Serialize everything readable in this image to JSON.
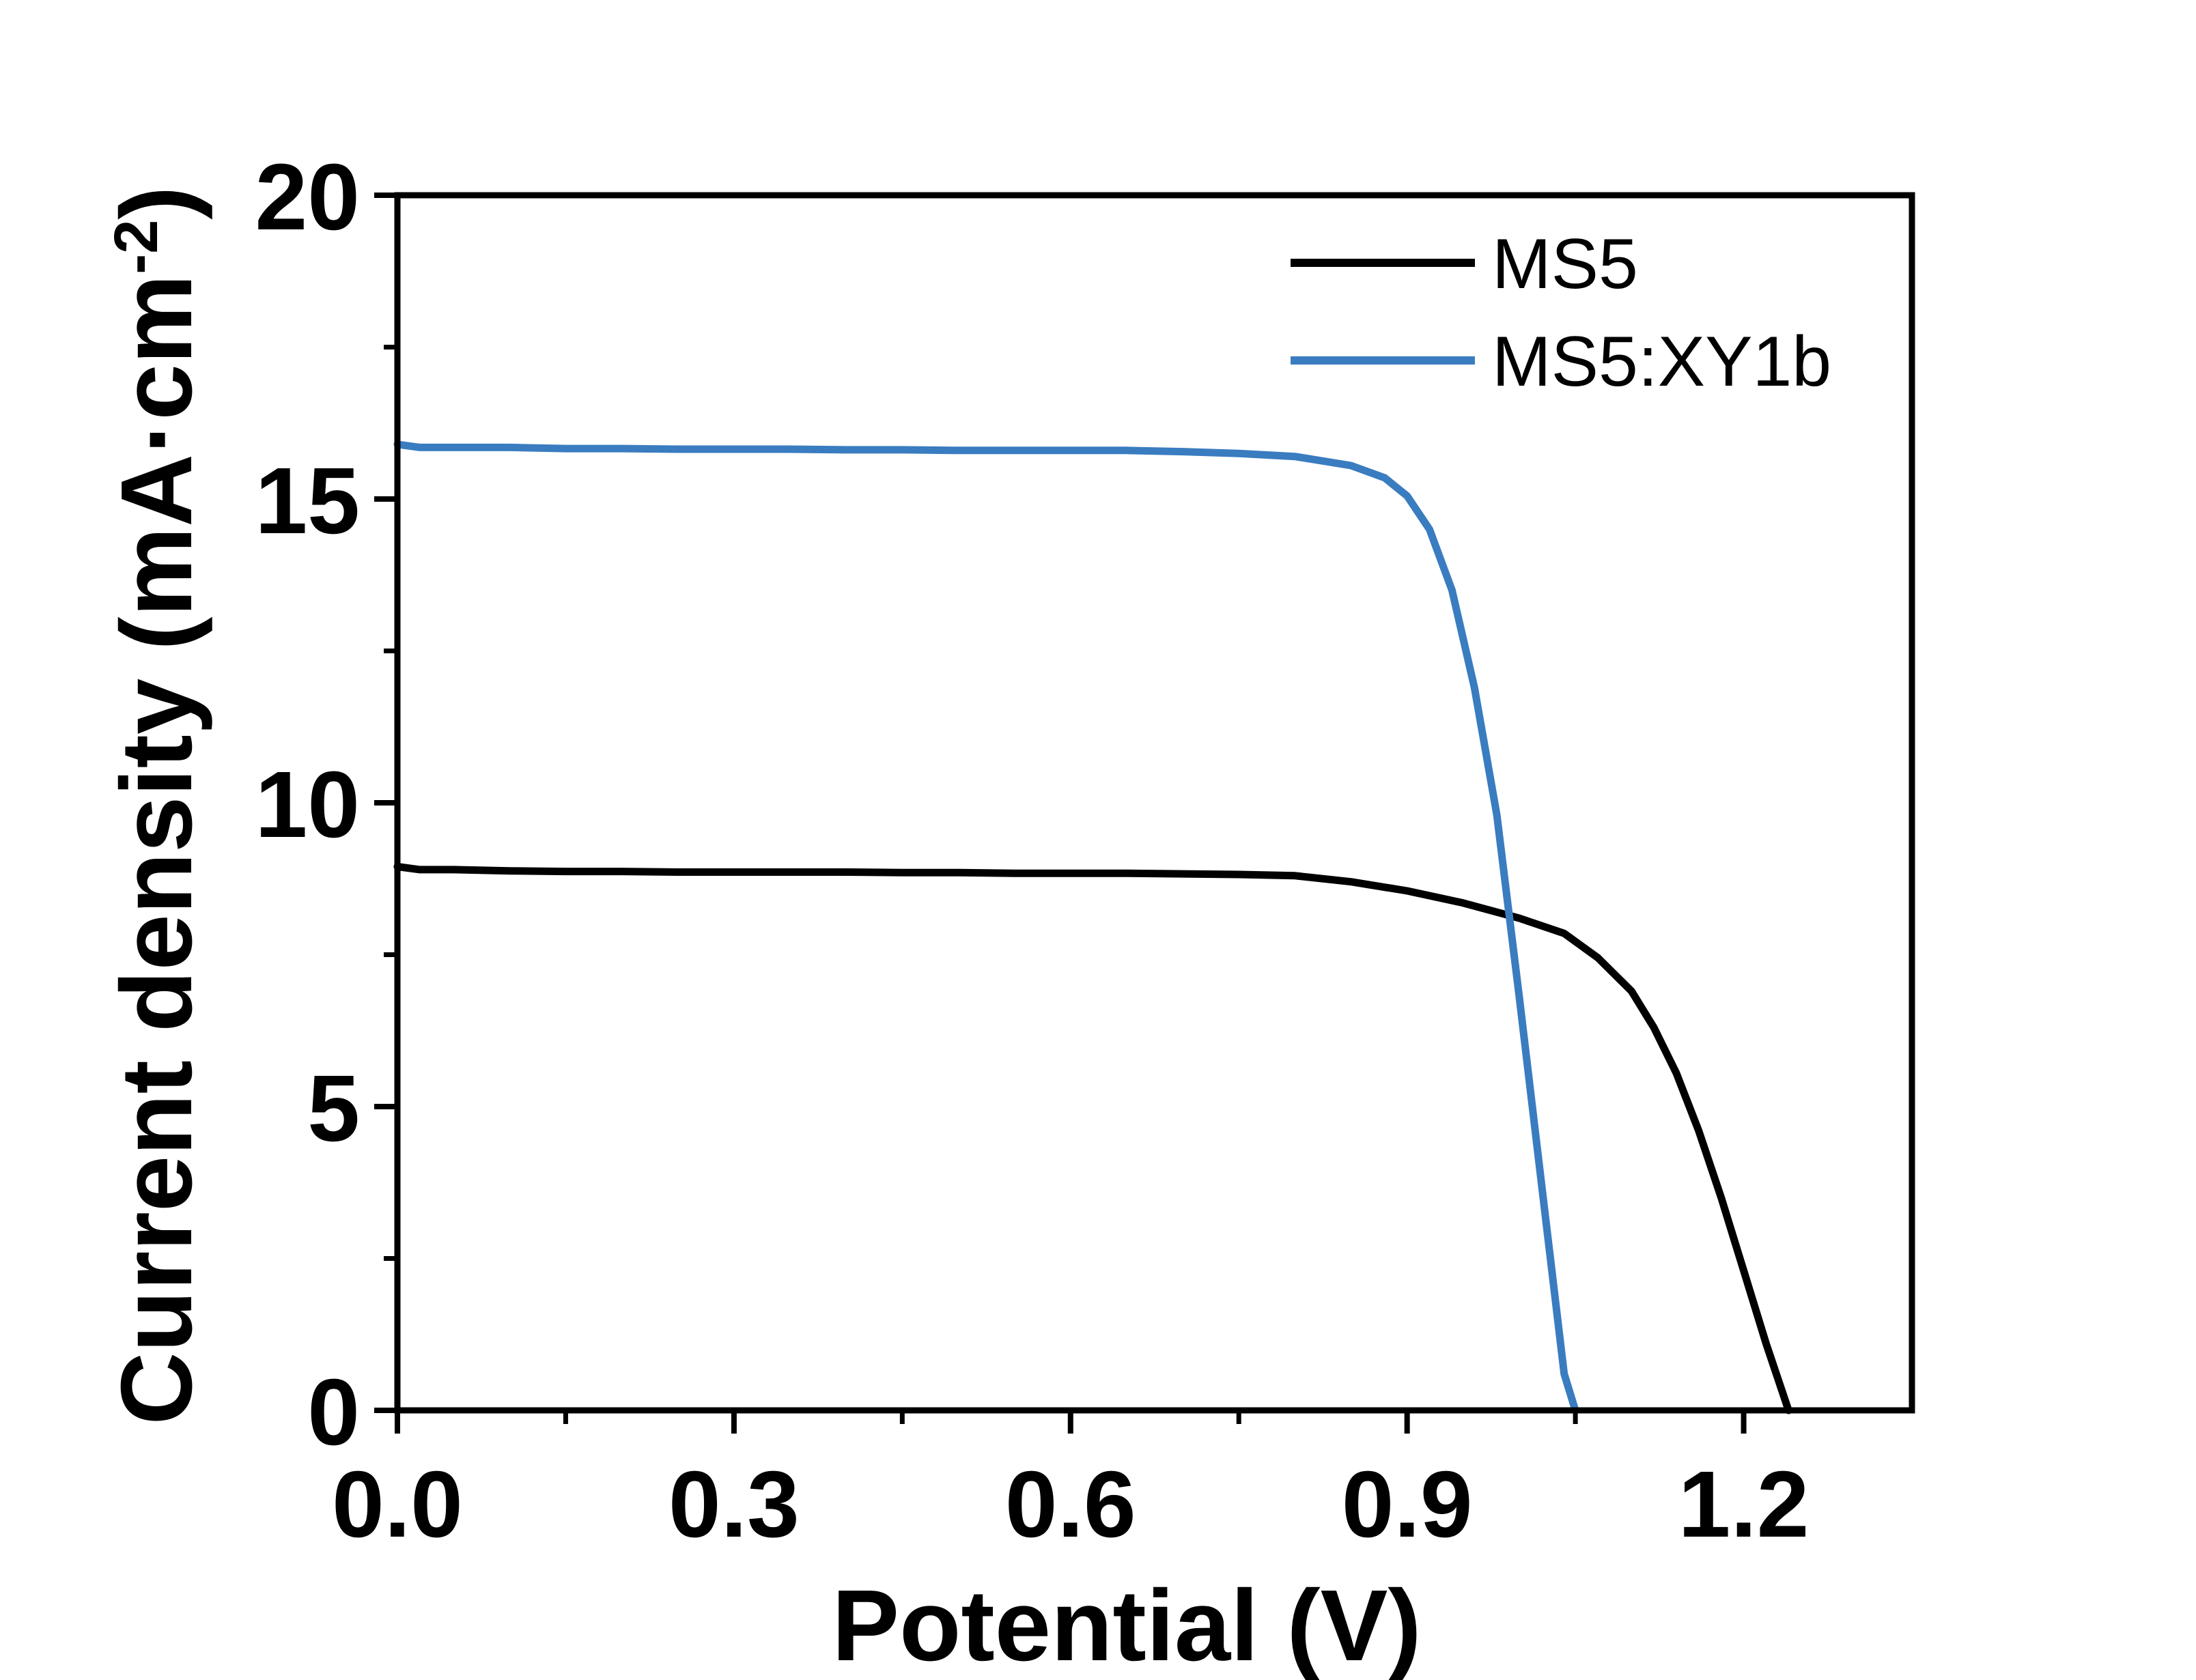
{
  "chart_data": {
    "type": "line",
    "title": "",
    "xlabel": "Potential (V)",
    "ylabel_main": "Current density (mA·cm",
    "ylabel_sup": "-2",
    "ylabel_close": ")",
    "xlim": [
      0.0,
      1.35
    ],
    "ylim": [
      0,
      20
    ],
    "x_ticks": [
      0.0,
      0.3,
      0.6,
      0.9,
      1.2
    ],
    "x_tick_labels": [
      "0.0",
      "0.3",
      "0.6",
      "0.9",
      "1.2"
    ],
    "x_minor_ticks": [
      0.15,
      0.45,
      0.75,
      1.05
    ],
    "y_ticks": [
      0,
      5,
      10,
      15,
      20
    ],
    "y_tick_labels": [
      "0",
      "5",
      "10",
      "15",
      "20"
    ],
    "y_minor_ticks": [
      2.5,
      7.5,
      12.5,
      17.5
    ],
    "grid": false,
    "legend_position": "top-right",
    "series": [
      {
        "name": "MS5",
        "color": "#000000",
        "x": [
          0.0,
          0.02,
          0.05,
          0.1,
          0.15,
          0.2,
          0.25,
          0.3,
          0.35,
          0.4,
          0.45,
          0.5,
          0.55,
          0.6,
          0.65,
          0.7,
          0.75,
          0.8,
          0.85,
          0.9,
          0.95,
          1.0,
          1.04,
          1.07,
          1.1,
          1.12,
          1.14,
          1.16,
          1.18,
          1.2,
          1.22,
          1.24
        ],
        "y": [
          8.95,
          8.9,
          8.9,
          8.88,
          8.87,
          8.87,
          8.86,
          8.86,
          8.86,
          8.86,
          8.85,
          8.85,
          8.84,
          8.84,
          8.84,
          8.83,
          8.82,
          8.8,
          8.7,
          8.55,
          8.35,
          8.1,
          7.85,
          7.45,
          6.9,
          6.3,
          5.55,
          4.6,
          3.5,
          2.3,
          1.1,
          0.0
        ]
      },
      {
        "name": "MS5:XY1b",
        "color": "#3a7cc0",
        "x": [
          0.0,
          0.02,
          0.05,
          0.1,
          0.15,
          0.2,
          0.25,
          0.3,
          0.35,
          0.4,
          0.45,
          0.5,
          0.55,
          0.6,
          0.65,
          0.7,
          0.75,
          0.8,
          0.85,
          0.88,
          0.9,
          0.92,
          0.94,
          0.96,
          0.98,
          1.0,
          1.02,
          1.04,
          1.05
        ],
        "y": [
          15.9,
          15.85,
          15.85,
          15.85,
          15.83,
          15.83,
          15.82,
          15.82,
          15.82,
          15.81,
          15.81,
          15.8,
          15.8,
          15.8,
          15.8,
          15.78,
          15.75,
          15.7,
          15.55,
          15.35,
          15.05,
          14.5,
          13.5,
          11.9,
          9.8,
          6.8,
          3.7,
          0.6,
          0.0
        ]
      }
    ]
  }
}
